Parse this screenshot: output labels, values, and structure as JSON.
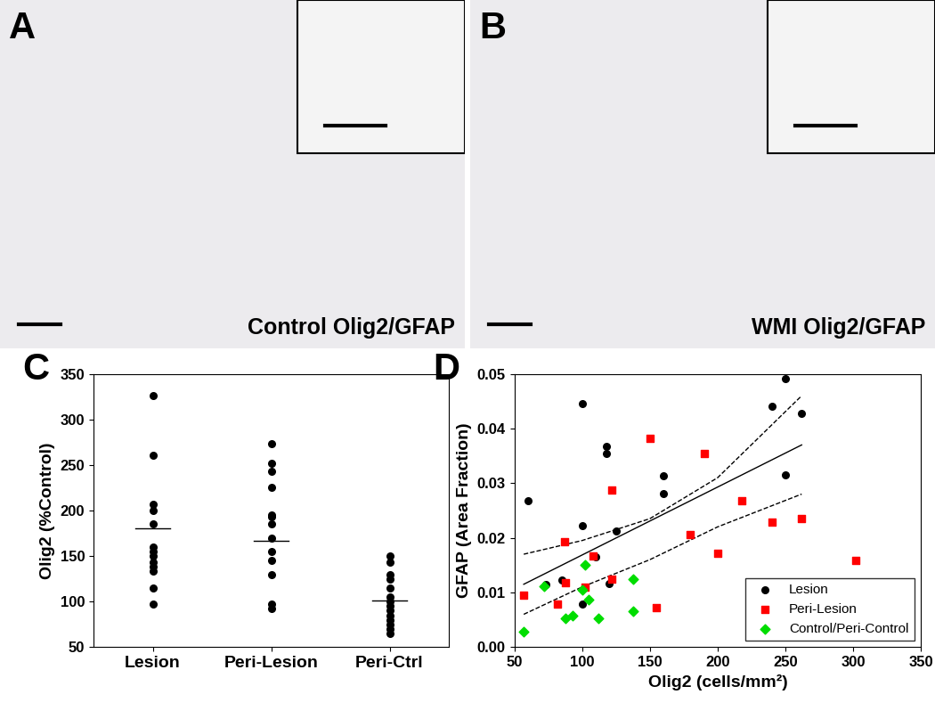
{
  "figure_panels": [
    {
      "label": "A",
      "caption": "Control Olig2/GFAP"
    },
    {
      "label": "B",
      "caption": "WMI Olig2/GFAP"
    }
  ],
  "chart_data": [
    {
      "type": "strip",
      "title": "C",
      "categories": [
        "Lesion",
        "Peri-Lesion",
        "Peri-Ctrl"
      ],
      "values": [
        [
          326,
          261,
          207,
          200,
          185,
          160,
          155,
          150,
          143,
          138,
          133,
          115,
          97
        ],
        [
          273,
          252,
          243,
          225,
          195,
          193,
          185,
          170,
          155,
          145,
          130,
          97,
          92
        ],
        [
          150,
          143,
          130,
          125,
          115,
          105,
          100,
          95,
          90,
          85,
          80,
          75,
          70,
          65
        ]
      ],
      "means": [
        180,
        167,
        101
      ],
      "color": "#000000",
      "marker": "circle",
      "y_label": "Olig2 (%Control)",
      "ylim": [
        50,
        350
      ],
      "yticks": [
        50,
        100,
        150,
        200,
        250,
        300,
        350
      ]
    },
    {
      "type": "scatter",
      "title": "D",
      "x_label": "Olig2 (cells/mm²)",
      "y_label": "GFAP (Area Fraction)",
      "xlim": [
        50,
        350
      ],
      "xticks": [
        50,
        100,
        150,
        200,
        250,
        300,
        350
      ],
      "ylim": [
        0,
        0.05
      ],
      "yticks": [
        {
          "value": 0,
          "label": "0.00"
        },
        0.01,
        0.02,
        0.03,
        0.04,
        0.05
      ],
      "legend": "lower right",
      "series": [
        {
          "name": "Lesion",
          "color": "#000000",
          "marker": "circle",
          "x": [
            60,
            73,
            85,
            100,
            100,
            100,
            118,
            118,
            125,
            120,
            160,
            160,
            240,
            250,
            250,
            262,
            110
          ],
          "y": [
            0.0268,
            0.0115,
            0.0122,
            0.0445,
            0.0222,
            0.0078,
            0.0355,
            0.0368,
            0.0212,
            0.0117,
            0.0313,
            0.0281,
            0.044,
            0.0492,
            0.0315,
            0.0428,
            0.0165
          ]
        },
        {
          "name": "Peri-Lesion",
          "color": "#ff0000",
          "marker": "square",
          "x": [
            57,
            82,
            87,
            88,
            102,
            108,
            122,
            122,
            150,
            155,
            180,
            190,
            200,
            218,
            240,
            262,
            302
          ],
          "y": [
            0.0095,
            0.0079,
            0.0193,
            0.0118,
            0.011,
            0.0167,
            0.0288,
            0.0125,
            0.0382,
            0.0073,
            0.0206,
            0.0355,
            0.0171,
            0.0268,
            0.0229,
            0.0235,
            0.0158
          ]
        },
        {
          "name": "Control/Peri-Control",
          "color": "#00dd00",
          "marker": "diamond",
          "x": [
            57,
            72,
            88,
            93,
            100,
            102,
            105,
            112,
            138,
            138
          ],
          "y": [
            0.0029,
            0.0112,
            0.0052,
            0.0058,
            0.0105,
            0.015,
            0.0087,
            0.0053,
            0.0066,
            0.0125
          ]
        }
      ],
      "fit": {
        "x": [
          57,
          262
        ],
        "y": [
          0.0115,
          0.037
        ]
      },
      "confidence_band": {
        "x": [
          57,
          100,
          150,
          200,
          262
        ],
        "upper": [
          0.017,
          0.0195,
          0.0235,
          0.031,
          0.046
        ],
        "lower": [
          0.006,
          0.011,
          0.016,
          0.022,
          0.028
        ]
      }
    }
  ]
}
